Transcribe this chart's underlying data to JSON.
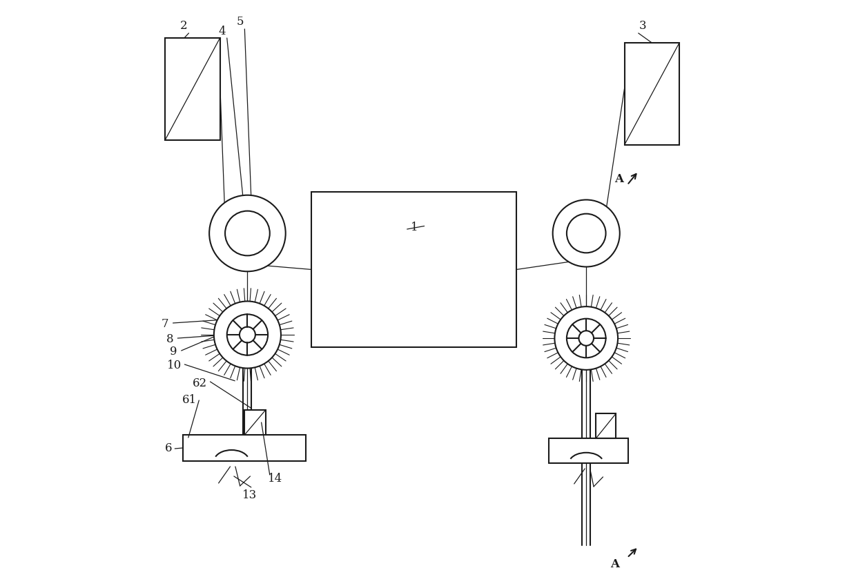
{
  "bg": "#ffffff",
  "lc": "#1a1a1a",
  "lw": 1.5,
  "tlw": 0.9,
  "blw": 0.8,
  "fig_w": 12.4,
  "fig_h": 8.36,
  "dpi": 100
}
